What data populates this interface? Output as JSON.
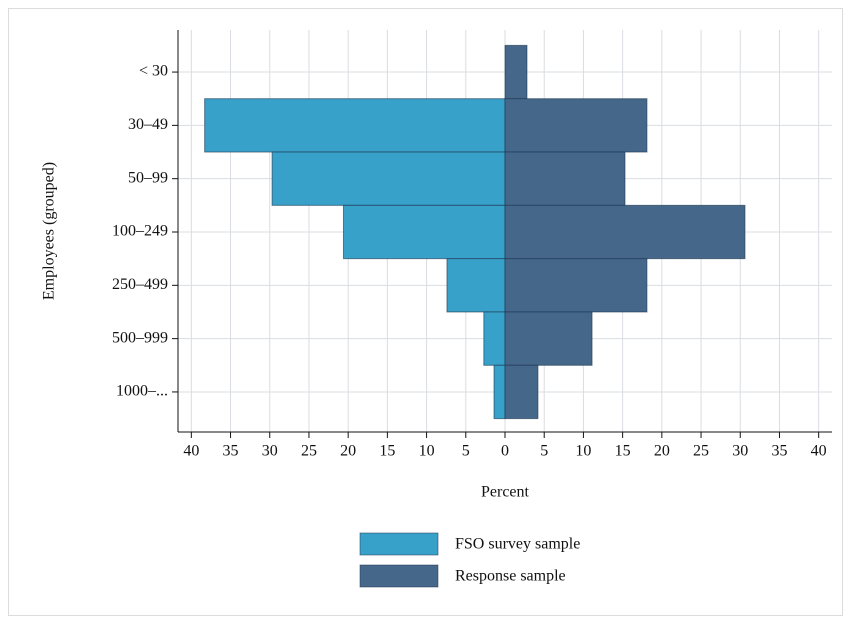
{
  "chart_data": {
    "type": "pyramid",
    "x_label": "Percent",
    "y_label": "Employees (grouped)",
    "categories": [
      "< 30",
      "30–49",
      "50–99",
      "100–249",
      "250–499",
      "500–999",
      "1000–..."
    ],
    "series": [
      {
        "name": "FSO survey sample",
        "color": "#38a1c9",
        "values": [
          0,
          -38.3,
          -29.7,
          -20.6,
          -7.4,
          -2.7,
          -1.4
        ]
      },
      {
        "name": "Response sample",
        "color": "#45678a",
        "values": [
          2.8,
          18.1,
          15.3,
          30.6,
          18.1,
          11.1,
          4.2
        ]
      }
    ],
    "xlim": [
      -41.7,
      41.7
    ],
    "xticks": [
      {
        "value": -40,
        "label": "40"
      },
      {
        "value": -35,
        "label": "35"
      },
      {
        "value": -30,
        "label": "30"
      },
      {
        "value": -25,
        "label": "25"
      },
      {
        "value": -20,
        "label": "20"
      },
      {
        "value": -15,
        "label": "15"
      },
      {
        "value": -10,
        "label": "10"
      },
      {
        "value": -5,
        "label": "5"
      },
      0,
      5,
      10,
      15,
      20,
      25,
      30,
      35,
      40
    ],
    "grid": true
  }
}
